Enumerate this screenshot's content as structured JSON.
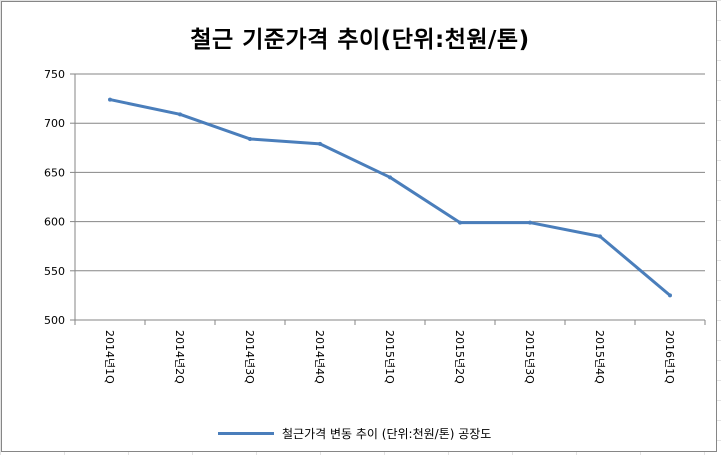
{
  "chart_data": {
    "type": "line",
    "title": "철근 기준가격 추이(단위:천원/톤)",
    "categories": [
      "2014년1Q",
      "2014년2Q",
      "2014년3Q",
      "2014년4Q",
      "2015년1Q",
      "2015년2Q",
      "2015년3Q",
      "2015년4Q",
      "2016년1Q"
    ],
    "series": [
      {
        "name": "철근가격 변동 추이 (단위:천원/톤) 공장도",
        "values": [
          724,
          709,
          684,
          679,
          645,
          599,
          599,
          585,
          525
        ],
        "color": "#4a7ebb"
      }
    ],
    "yticks": [
      "750",
      "700",
      "650",
      "600",
      "550",
      "500"
    ],
    "ylim": [
      500,
      750
    ],
    "xlabel": "",
    "ylabel": "",
    "grid": true,
    "legend_position": "bottom"
  }
}
